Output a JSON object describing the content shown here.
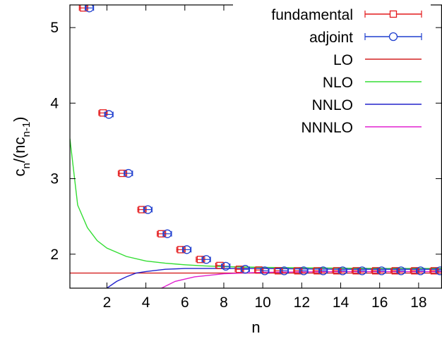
{
  "chart_data": {
    "type": "scatter",
    "xlabel": "n",
    "ylabel": {
      "base": "c",
      "sub1": "n",
      "mid": "/(nc",
      "sub2": "n-1",
      "end": ")"
    },
    "xlim": [
      0.1,
      19.2
    ],
    "ylim": [
      1.55,
      5.3
    ],
    "x_ticks": [
      2,
      4,
      6,
      8,
      10,
      12,
      14,
      16,
      18
    ],
    "y_ticks": [
      2,
      3,
      4,
      5
    ],
    "grid": false,
    "legend_position": "top-right",
    "series": [
      {
        "name": "fundamental",
        "kind": "errorbar",
        "marker": "square",
        "color": "#e41a1c",
        "x": [
          0.8,
          1.8,
          2.8,
          3.8,
          4.8,
          5.8,
          6.8,
          7.8,
          8.8,
          9.8,
          10.8,
          11.8,
          12.8,
          13.8,
          14.8,
          15.8,
          16.8,
          17.8,
          18.8
        ],
        "y": [
          5.26,
          3.87,
          3.07,
          2.59,
          2.27,
          2.06,
          1.93,
          1.85,
          1.8,
          1.79,
          1.78,
          1.78,
          1.78,
          1.78,
          1.78,
          1.78,
          1.78,
          1.78,
          1.78
        ]
      },
      {
        "name": "adjoint",
        "kind": "errorbar",
        "marker": "circle",
        "color": "#1f3fcf",
        "x": [
          1.1,
          2.1,
          3.1,
          4.1,
          5.1,
          6.1,
          7.1,
          8.1,
          9.1,
          10.1,
          11.1,
          12.1,
          13.1,
          14.1,
          15.1,
          16.1,
          17.1,
          18.1,
          19.1
        ],
        "y": [
          5.26,
          3.85,
          3.07,
          2.59,
          2.27,
          2.06,
          1.93,
          1.84,
          1.8,
          1.78,
          1.78,
          1.78,
          1.78,
          1.78,
          1.78,
          1.78,
          1.78,
          1.78,
          1.78
        ]
      },
      {
        "name": "LO",
        "kind": "line",
        "color": "#d42020",
        "x": [
          0.1,
          19.2
        ],
        "y": [
          1.75,
          1.75
        ]
      },
      {
        "name": "NLO",
        "kind": "line",
        "color": "#33dd33",
        "x": [
          0.1,
          0.5,
          1,
          1.5,
          2,
          3,
          4,
          5,
          6,
          7,
          8,
          9,
          10,
          12,
          14,
          16,
          19.2
        ],
        "y": [
          3.53,
          2.65,
          2.35,
          2.18,
          2.08,
          1.97,
          1.91,
          1.88,
          1.86,
          1.845,
          1.835,
          1.83,
          1.825,
          1.82,
          1.815,
          1.81,
          1.81
        ]
      },
      {
        "name": "NNLO",
        "kind": "line",
        "color": "#2222cc",
        "x": [
          2.0,
          2.5,
          3,
          3.5,
          4,
          5,
          6,
          8,
          10,
          14,
          19.2
        ],
        "y": [
          1.55,
          1.64,
          1.7,
          1.75,
          1.77,
          1.8,
          1.81,
          1.81,
          1.81,
          1.8,
          1.8
        ]
      },
      {
        "name": "NNNLO",
        "kind": "line",
        "color": "#e020d0",
        "x": [
          4.8,
          5.5,
          6.5,
          8,
          10,
          14,
          19.2
        ],
        "y": [
          1.55,
          1.64,
          1.7,
          1.74,
          1.76,
          1.77,
          1.77
        ]
      }
    ]
  }
}
